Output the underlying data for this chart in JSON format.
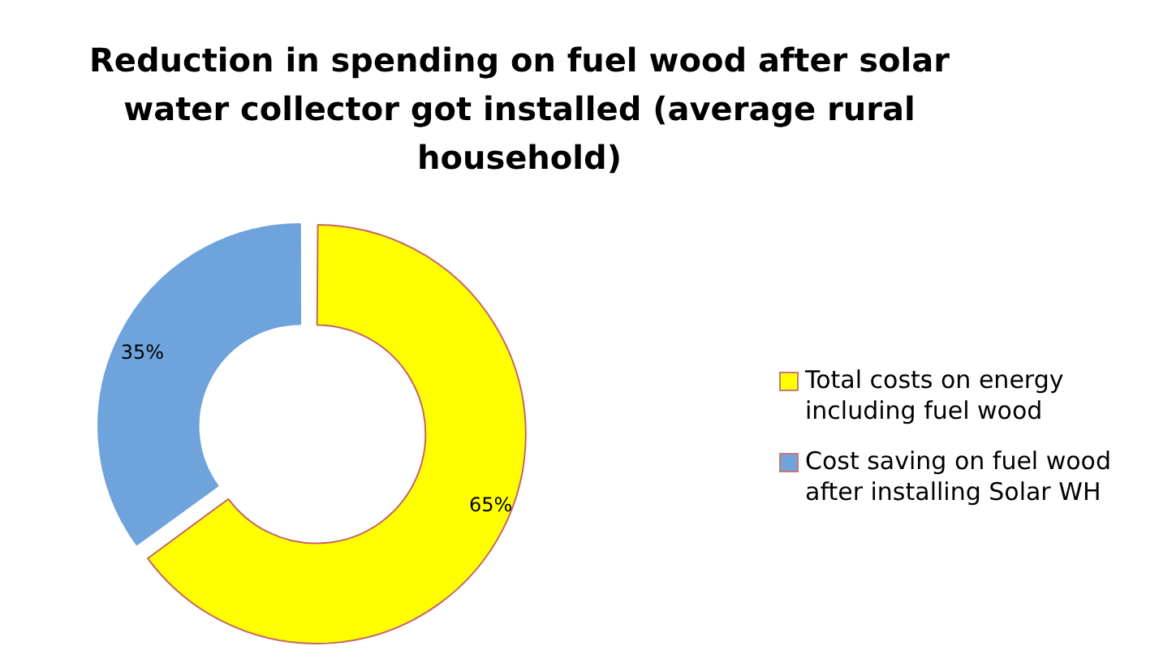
{
  "chart_data": {
    "type": "donut",
    "title": "Reduction in spending on fuel wood after solar water collector got installed (average rural household)",
    "categories": [
      "Total costs on energy including fuel wood",
      "Cost saving on fuel wood after installing Solar WH"
    ],
    "values": [
      65,
      35
    ],
    "colors": [
      "#ffff00",
      "#6fa3dc"
    ],
    "value_labels": [
      "65%",
      "35%"
    ],
    "legend": "right"
  }
}
